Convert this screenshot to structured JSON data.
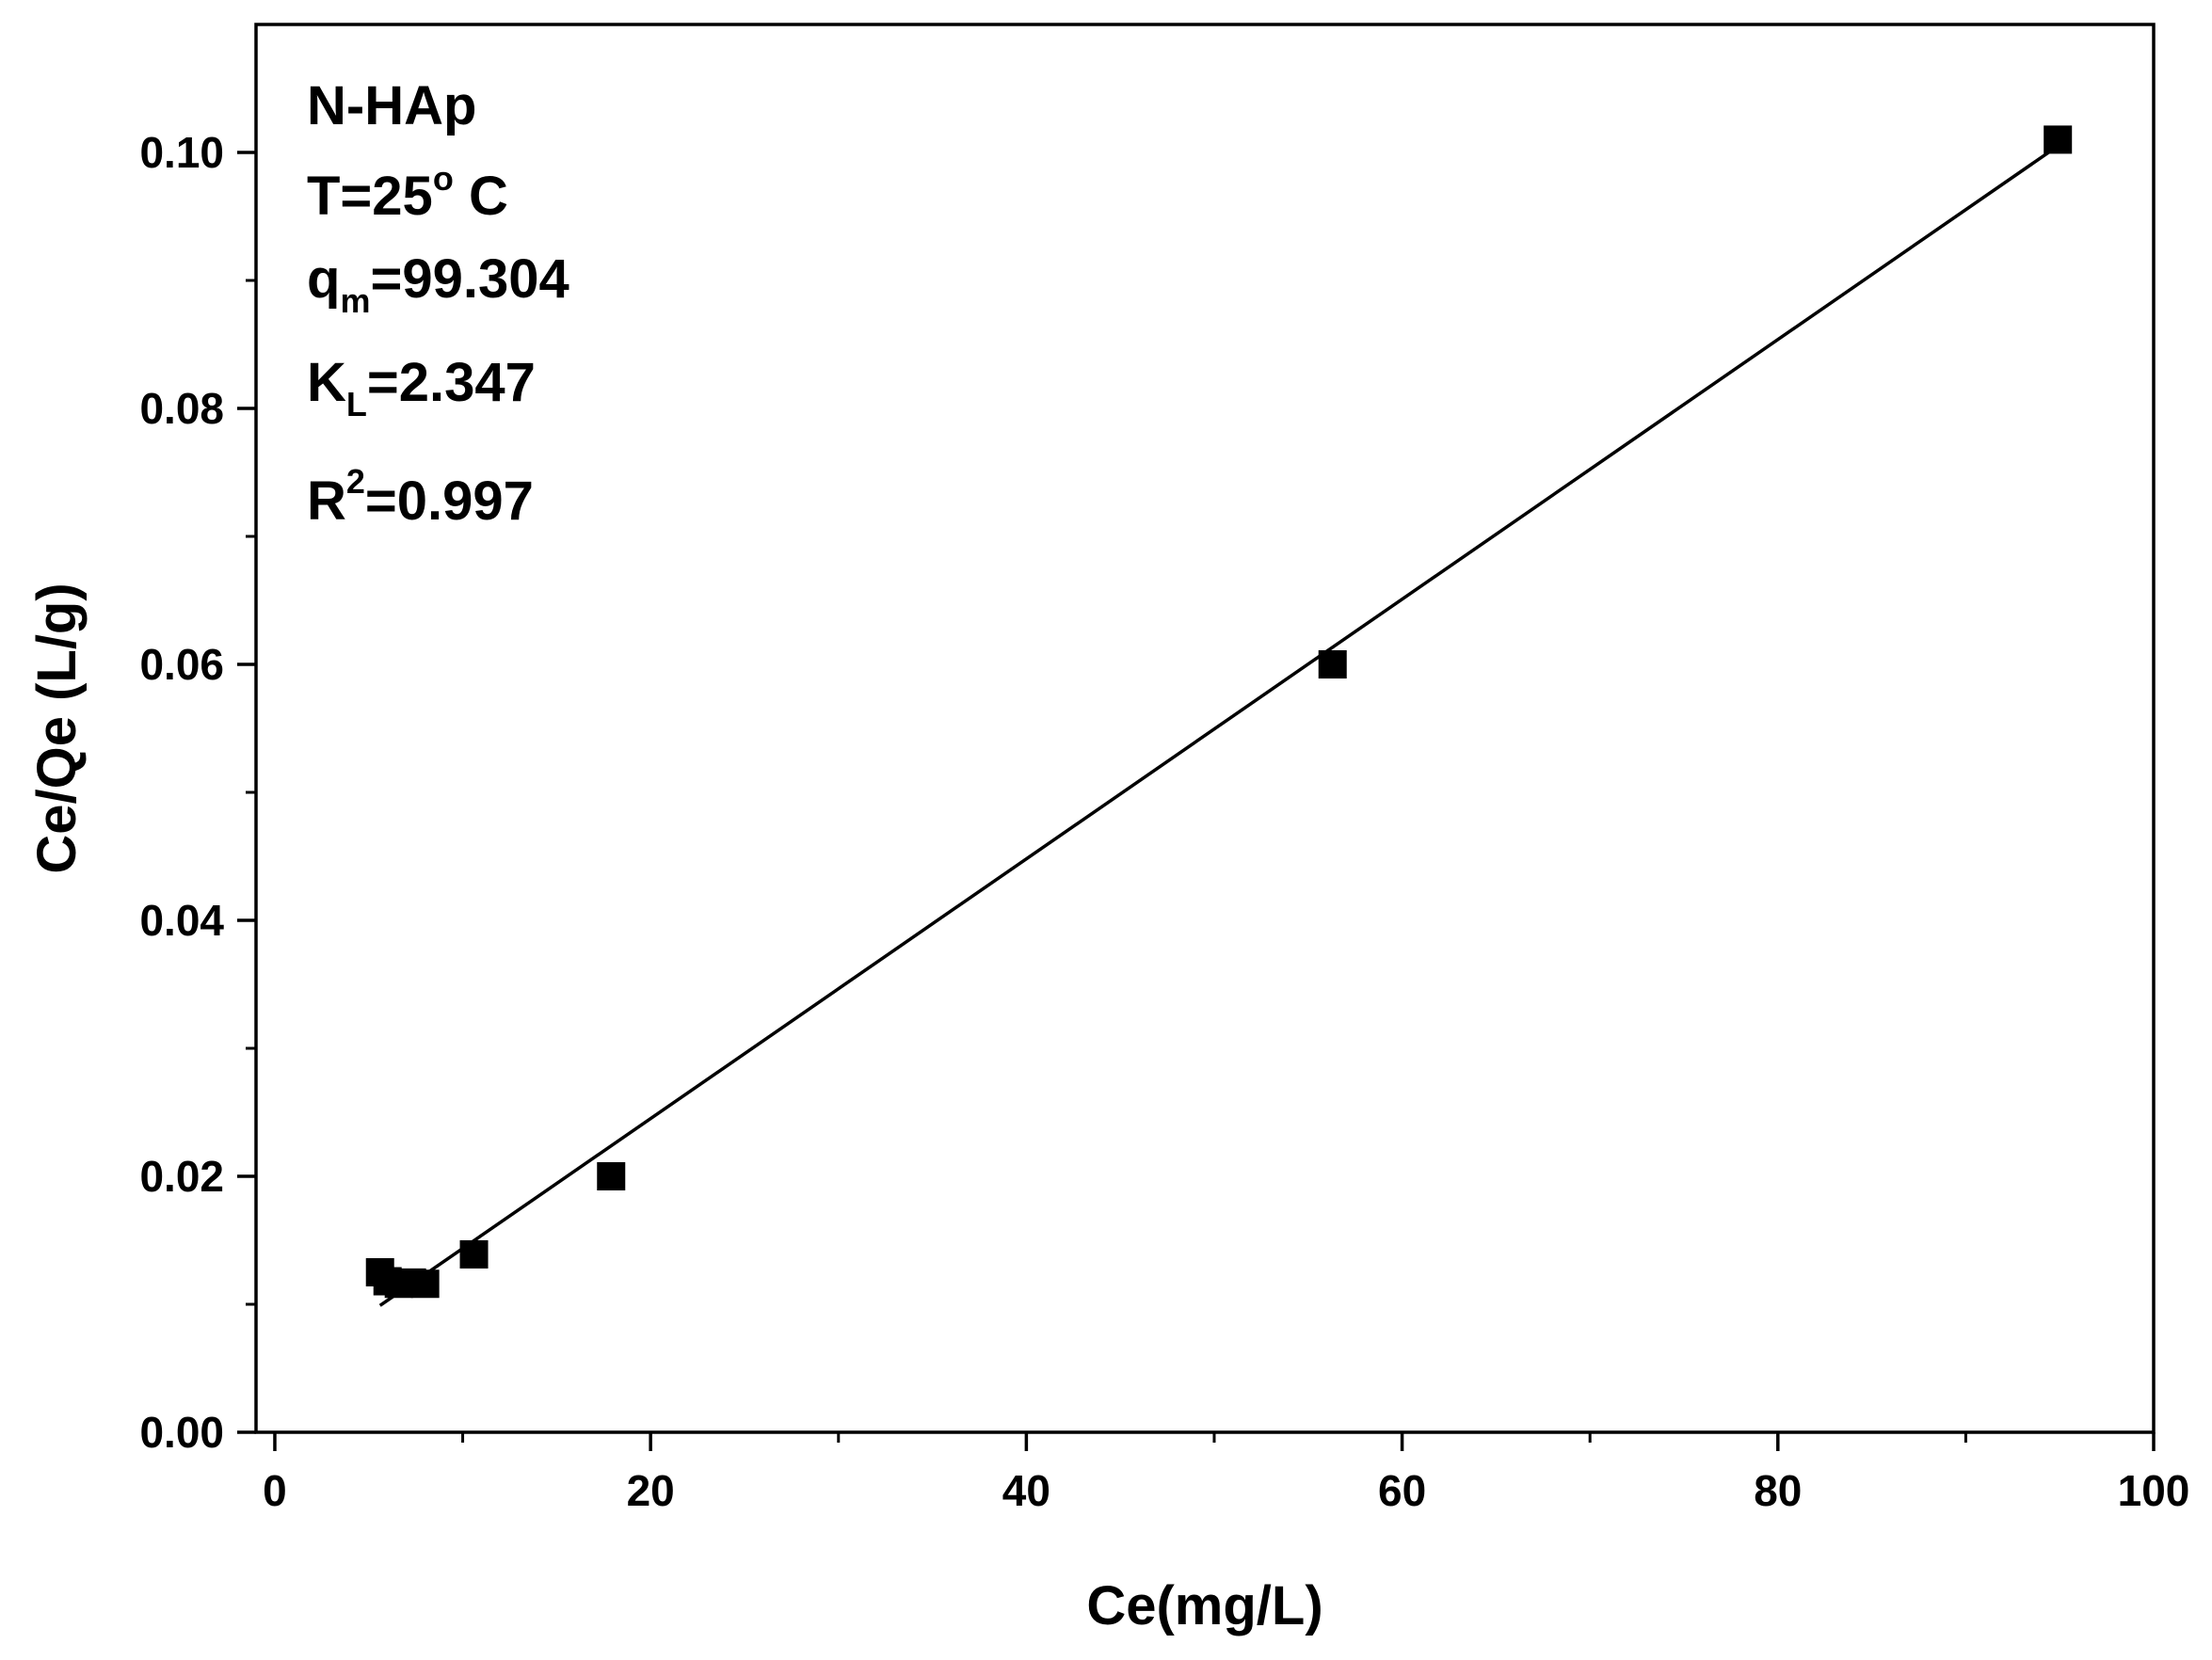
{
  "chart_data": {
    "type": "scatter",
    "title": "",
    "xlabel": "Ce(mg/L)",
    "ylabel": "Ce/Qe (L/g)",
    "xlim": [
      -1,
      100
    ],
    "ylim": [
      0,
      0.11
    ],
    "x_ticks": [
      "0",
      "20",
      "40",
      "60",
      "80",
      "100"
    ],
    "x_tick_values": [
      0,
      20,
      40,
      60,
      80,
      100
    ],
    "y_ticks": [
      "0.00",
      "0.02",
      "0.04",
      "0.06",
      "0.08",
      "0.10"
    ],
    "y_tick_values": [
      0,
      0.02,
      0.04,
      0.06,
      0.08,
      0.1
    ],
    "grid": false,
    "legend": "none",
    "marker_color": "#000000",
    "line_color": "#000000",
    "series": [
      {
        "type": "scatter",
        "marker": "square",
        "points": [
          {
            "x": 5.6,
            "y": 0.0125
          },
          {
            "x": 6.0,
            "y": 0.0118
          },
          {
            "x": 6.6,
            "y": 0.0116
          },
          {
            "x": 7.3,
            "y": 0.0117
          },
          {
            "x": 8.0,
            "y": 0.0116
          },
          {
            "x": 10.6,
            "y": 0.0139
          },
          {
            "x": 17.9,
            "y": 0.02
          },
          {
            "x": 56.3,
            "y": 0.06
          },
          {
            "x": 94.9,
            "y": 0.101
          }
        ]
      },
      {
        "type": "line",
        "fit": "linear",
        "points": [
          {
            "x": 5.6,
            "y": 0.0099
          },
          {
            "x": 94.9,
            "y": 0.1005
          }
        ]
      }
    ],
    "annotations": {
      "material": "N-HAp",
      "temp_prefix": "T=25",
      "temp_sup": "o",
      "temp_suffix": " C",
      "qm_main": "q",
      "qm_sub": "m",
      "qm_value": "=99.304",
      "kl_main": "K",
      "kl_sub": "L",
      "kl_value": "=2.347",
      "r2_main": "R",
      "r2_sup": "2",
      "r2_value": "=0.997"
    }
  }
}
